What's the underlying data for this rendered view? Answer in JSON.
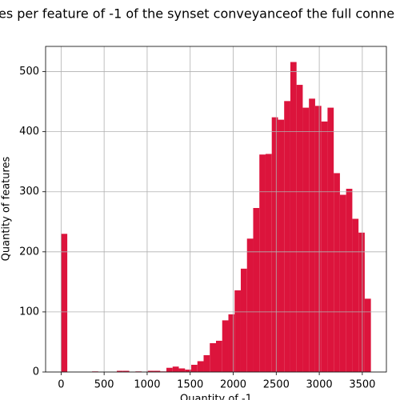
{
  "chart_data": {
    "type": "histogram",
    "title": "es per feature of -1 of the synset conveyanceof the full conne",
    "x_label": "Quantity of -1",
    "y_label": "Quantity of features",
    "color": "#dc143c",
    "bins": [
      0,
      72,
      144,
      216,
      288,
      360,
      432,
      504,
      576,
      648,
      720,
      792,
      864,
      936,
      1008,
      1080,
      1152,
      1224,
      1296,
      1368,
      1440,
      1512,
      1584,
      1656,
      1728,
      1800,
      1872,
      1944,
      2016,
      2088,
      2160,
      2232,
      2304,
      2376,
      2448,
      2520,
      2592,
      2664,
      2736,
      2808,
      2880,
      2952,
      3024,
      3096,
      3168,
      3240,
      3312,
      3384,
      3456,
      3528,
      3600
    ],
    "counts": [
      230,
      0,
      0,
      0,
      0,
      1,
      0,
      0,
      0,
      2,
      2,
      0,
      1,
      0,
      2,
      2,
      1,
      7,
      9,
      6,
      4,
      12,
      18,
      28,
      48,
      52,
      86,
      96,
      136,
      172,
      222,
      273,
      362,
      363,
      424,
      420,
      451,
      516,
      478,
      440,
      455,
      443,
      417,
      440,
      331,
      295,
      305,
      255,
      232,
      122
    ],
    "xlim": [
      -180,
      3780
    ],
    "ylim": [
      0,
      542
    ],
    "xticks": [
      0,
      500,
      1000,
      1500,
      2000,
      2500,
      3000,
      3500
    ],
    "yticks": [
      0,
      100,
      200,
      300,
      400,
      500
    ],
    "grid": true
  }
}
